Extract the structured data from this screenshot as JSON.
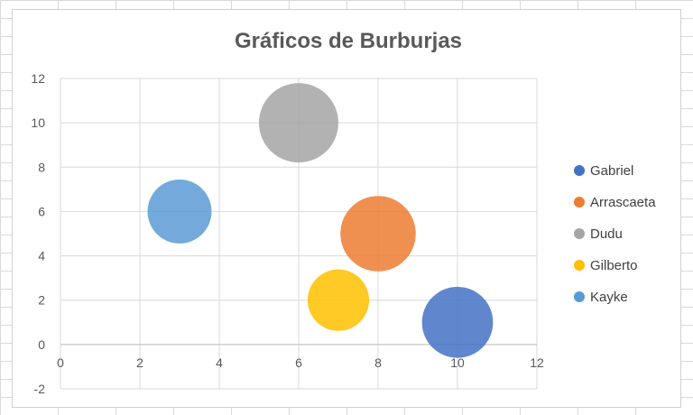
{
  "chart_data": {
    "type": "bubble",
    "title": "Gráficos de Burburjas",
    "xlabel": "",
    "ylabel": "",
    "xlim": [
      0,
      12
    ],
    "ylim": [
      -2,
      12
    ],
    "x_ticks": [
      0,
      2,
      4,
      6,
      8,
      10,
      12
    ],
    "y_ticks": [
      -2,
      0,
      2,
      4,
      6,
      8,
      10,
      12
    ],
    "grid": true,
    "legend_position": "right",
    "series": [
      {
        "name": "Gabriel",
        "x": 10,
        "y": 1,
        "size": 0.8,
        "color": "#4472C4"
      },
      {
        "name": "Arrascaeta",
        "x": 8,
        "y": 5,
        "size": 0.9,
        "color": "#ED7D31"
      },
      {
        "name": "Dudu",
        "x": 6,
        "y": 10,
        "size": 1.0,
        "color": "#A5A5A5"
      },
      {
        "name": "Gilberto",
        "x": 7,
        "y": 2,
        "size": 0.6,
        "color": "#FFC000"
      },
      {
        "name": "Kayke",
        "x": 3,
        "y": 6,
        "size": 0.65,
        "color": "#5B9BD5"
      }
    ]
  }
}
